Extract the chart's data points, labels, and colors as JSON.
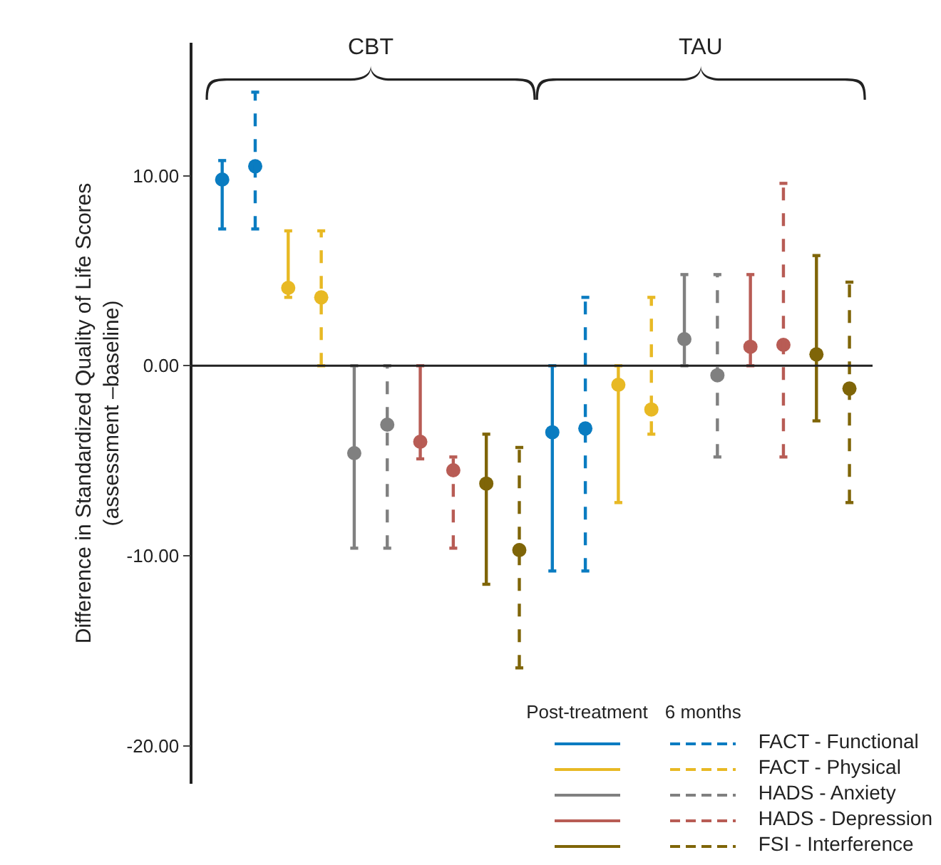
{
  "chart_data": {
    "type": "scatter",
    "ylabel": "Difference in Standardized Quality of Life Scores\n(assessment –baseline)",
    "annotations": [
      "CBT",
      "TAU",
      "Post-treatment",
      "6 months"
    ],
    "categories": [
      null,
      null,
      null,
      null,
      null,
      null,
      null,
      null,
      null,
      null,
      null,
      null,
      null,
      null,
      null,
      null,
      null,
      null,
      null,
      null
    ],
    "ylim": [
      -22,
      17
    ],
    "yticks": [
      {
        "value": -20,
        "label": "-20.00"
      },
      {
        "value": -10,
        "label": "-10.00"
      },
      {
        "value": 0,
        "label": "0.00"
      },
      {
        "value": 10,
        "label": "10.00"
      }
    ],
    "ref_lines": [
      {
        "axis": "y",
        "value": 0,
        "color": "#222222"
      }
    ],
    "marker": "circle",
    "grid": false,
    "legend": "bottom right",
    "series": [
      {
        "name": "FACT - Functional",
        "color": "#0a7cc1",
        "line_style": "solid",
        "values": [
          9.8,
          null,
          null,
          null,
          null,
          null,
          null,
          null,
          null,
          null,
          -3.5,
          null,
          null,
          null,
          null,
          null,
          null,
          null,
          null,
          null
        ],
        "errors": [
          [
            7.2,
            10.8
          ],
          null,
          null,
          null,
          null,
          null,
          null,
          null,
          null,
          null,
          [
            -10.8,
            0
          ],
          null,
          null,
          null,
          null,
          null,
          null,
          null,
          null,
          null
        ]
      },
      {
        "color": "#0a7cc1",
        "line_style": "dashed",
        "values": [
          null,
          10.5,
          null,
          null,
          null,
          null,
          null,
          null,
          null,
          null,
          null,
          -3.3,
          null,
          null,
          null,
          null,
          null,
          null,
          null,
          null
        ],
        "errors": [
          null,
          [
            7.2,
            14.4
          ],
          null,
          null,
          null,
          null,
          null,
          null,
          null,
          null,
          null,
          [
            -10.8,
            3.6
          ],
          null,
          null,
          null,
          null,
          null,
          null,
          null,
          null
        ]
      },
      {
        "name": "FACT - Physical",
        "color": "#e8b924",
        "line_style": "solid",
        "values": [
          null,
          null,
          4.1,
          null,
          null,
          null,
          null,
          null,
          null,
          null,
          null,
          null,
          -1.0,
          null,
          null,
          null,
          null,
          null,
          null,
          null
        ],
        "errors": [
          null,
          null,
          [
            3.6,
            7.1
          ],
          null,
          null,
          null,
          null,
          null,
          null,
          null,
          null,
          null,
          [
            -7.2,
            0
          ],
          null,
          null,
          null,
          null,
          null,
          null,
          null
        ]
      },
      {
        "color": "#e8b924",
        "line_style": "dashed",
        "values": [
          null,
          null,
          null,
          3.6,
          null,
          null,
          null,
          null,
          null,
          null,
          null,
          null,
          null,
          -2.3,
          null,
          null,
          null,
          null,
          null,
          null
        ],
        "errors": [
          null,
          null,
          null,
          [
            0,
            7.1
          ],
          null,
          null,
          null,
          null,
          null,
          null,
          null,
          null,
          null,
          [
            -3.6,
            3.6
          ],
          null,
          null,
          null,
          null,
          null,
          null
        ]
      },
      {
        "name": "HADS - Anxiety",
        "color": "#808080",
        "line_style": "solid",
        "values": [
          null,
          null,
          null,
          null,
          -4.6,
          null,
          null,
          null,
          null,
          null,
          null,
          null,
          null,
          null,
          1.4,
          null,
          null,
          null,
          null,
          null
        ],
        "errors": [
          null,
          null,
          null,
          null,
          [
            -9.6,
            0
          ],
          null,
          null,
          null,
          null,
          null,
          null,
          null,
          null,
          null,
          [
            0,
            4.8
          ],
          null,
          null,
          null,
          null,
          null
        ]
      },
      {
        "color": "#808080",
        "line_style": "dashed",
        "values": [
          null,
          null,
          null,
          null,
          null,
          -3.1,
          null,
          null,
          null,
          null,
          null,
          null,
          null,
          null,
          null,
          -0.5,
          null,
          null,
          null,
          null
        ],
        "errors": [
          null,
          null,
          null,
          null,
          null,
          [
            -9.6,
            0
          ],
          null,
          null,
          null,
          null,
          null,
          null,
          null,
          null,
          null,
          [
            -4.8,
            4.8
          ],
          null,
          null,
          null,
          null
        ]
      },
      {
        "name": "HADS - Depression",
        "color": "#b85c55",
        "line_style": "solid",
        "values": [
          null,
          null,
          null,
          null,
          null,
          null,
          -4.0,
          null,
          null,
          null,
          null,
          null,
          null,
          null,
          null,
          null,
          1.0,
          null,
          null,
          null
        ],
        "errors": [
          null,
          null,
          null,
          null,
          null,
          null,
          [
            -4.9,
            0
          ],
          null,
          null,
          null,
          null,
          null,
          null,
          null,
          null,
          null,
          [
            0,
            4.8
          ],
          null,
          null,
          null
        ]
      },
      {
        "color": "#b85c55",
        "line_style": "dashed",
        "values": [
          null,
          null,
          null,
          null,
          null,
          null,
          null,
          -5.5,
          null,
          null,
          null,
          null,
          null,
          null,
          null,
          null,
          null,
          1.1,
          null,
          null
        ],
        "errors": [
          null,
          null,
          null,
          null,
          null,
          null,
          null,
          [
            -9.6,
            -4.8
          ],
          null,
          null,
          null,
          null,
          null,
          null,
          null,
          null,
          null,
          [
            -4.8,
            9.6
          ],
          null,
          null
        ]
      },
      {
        "name": "FSI - Interference",
        "color": "#7f6508",
        "line_style": "solid",
        "values": [
          null,
          null,
          null,
          null,
          null,
          null,
          null,
          null,
          -6.2,
          null,
          null,
          null,
          null,
          null,
          null,
          null,
          null,
          null,
          0.6,
          null
        ],
        "errors": [
          null,
          null,
          null,
          null,
          null,
          null,
          null,
          null,
          [
            -11.5,
            -3.6
          ],
          null,
          null,
          null,
          null,
          null,
          null,
          null,
          null,
          null,
          [
            -2.9,
            5.8
          ],
          null
        ]
      },
      {
        "color": "#7f6508",
        "line_style": "dashed",
        "values": [
          null,
          null,
          null,
          null,
          null,
          null,
          null,
          null,
          null,
          -9.7,
          null,
          null,
          null,
          null,
          null,
          null,
          null,
          null,
          null,
          -1.2
        ],
        "errors": [
          null,
          null,
          null,
          null,
          null,
          null,
          null,
          null,
          null,
          [
            -15.9,
            -4.3
          ],
          null,
          null,
          null,
          null,
          null,
          null,
          null,
          null,
          null,
          [
            -7.2,
            4.4
          ]
        ]
      }
    ]
  }
}
